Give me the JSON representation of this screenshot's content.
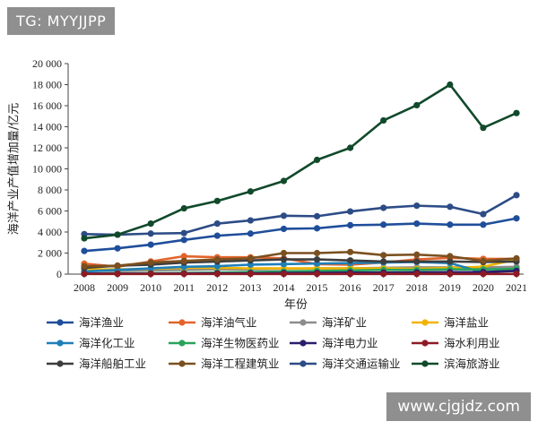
{
  "watermark_top": "TG: MYYJJPP",
  "watermark_bottom": "www.cjgjdz.com",
  "chart_data": {
    "type": "line",
    "xlabel": "年份",
    "ylabel": "海洋产业产值增加量/亿元",
    "ylim": [
      0,
      20000
    ],
    "yticks": [
      0,
      2000,
      4000,
      6000,
      8000,
      10000,
      12000,
      14000,
      16000,
      18000,
      20000
    ],
    "ytick_labels": [
      "0",
      "2 000",
      "4 000",
      "6 000",
      "8 000",
      "10 000",
      "12 000",
      "14 000",
      "16 000",
      "18 000",
      "20 000"
    ],
    "categories": [
      "2008",
      "2009",
      "2010",
      "2011",
      "2012",
      "2013",
      "2014",
      "2015",
      "2016",
      "2017",
      "2018",
      "2019",
      "2020",
      "2021"
    ],
    "grid": false,
    "legend_position": "bottom",
    "series": [
      {
        "name": "海洋渔业",
        "color": "#1f4e9a",
        "values": [
          2200,
          2450,
          2800,
          3250,
          3650,
          3850,
          4300,
          4350,
          4650,
          4700,
          4800,
          4700,
          4700,
          5300
        ]
      },
      {
        "name": "海洋油气业",
        "color": "#e2642b",
        "values": [
          1000,
          700,
          1200,
          1700,
          1600,
          1600,
          1500,
          950,
          900,
          1100,
          1400,
          1550,
          1450,
          1450
        ]
      },
      {
        "name": "海洋矿业",
        "color": "#8c8c8c",
        "values": [
          300,
          300,
          350,
          400,
          450,
          450,
          500,
          550,
          550,
          600,
          650,
          650,
          650,
          700
        ]
      },
      {
        "name": "海洋盐业",
        "color": "#f0b400",
        "values": [
          450,
          450,
          500,
          600,
          600,
          550,
          550,
          550,
          550,
          550,
          500,
          600,
          700,
          1400
        ]
      },
      {
        "name": "海洋化工业",
        "color": "#1e7fb8",
        "values": [
          250,
          400,
          550,
          700,
          750,
          900,
          950,
          1000,
          1050,
          1100,
          1150,
          1050,
          150,
          500
        ]
      },
      {
        "name": "海洋生物医药业",
        "color": "#2aa35a",
        "values": [
          50,
          70,
          80,
          100,
          150,
          200,
          250,
          300,
          350,
          400,
          400,
          450,
          450,
          500
        ]
      },
      {
        "name": "海洋电力业",
        "color": "#2b1d6b",
        "values": [
          50,
          50,
          50,
          60,
          70,
          80,
          100,
          120,
          150,
          150,
          170,
          190,
          200,
          300
        ]
      },
      {
        "name": "海水利用业",
        "color": "#8e1b24",
        "values": [
          20,
          20,
          20,
          20,
          20,
          20,
          20,
          20,
          20,
          20,
          20,
          20,
          20,
          20
        ]
      },
      {
        "name": "海洋船舶工业",
        "color": "#3d3d3d",
        "values": [
          600,
          800,
          900,
          1100,
          1200,
          1300,
          1400,
          1400,
          1300,
          1200,
          1200,
          1200,
          1150,
          1200
        ]
      },
      {
        "name": "海洋工程建筑业",
        "color": "#7a5020",
        "values": [
          750,
          800,
          1100,
          1250,
          1400,
          1500,
          2000,
          2000,
          2100,
          1800,
          1850,
          1700,
          1250,
          1500
        ]
      },
      {
        "name": "海洋交通运输业",
        "color": "#2d4c86",
        "values": [
          3800,
          3750,
          3850,
          3900,
          4800,
          5100,
          5550,
          5500,
          5950,
          6300,
          6500,
          6400,
          5700,
          7500
        ]
      },
      {
        "name": "滨海旅游业",
        "color": "#114a2b",
        "values": [
          3400,
          3750,
          4800,
          6250,
          6950,
          7850,
          8850,
          10850,
          12000,
          14600,
          16050,
          18000,
          13900,
          15300
        ]
      }
    ]
  }
}
